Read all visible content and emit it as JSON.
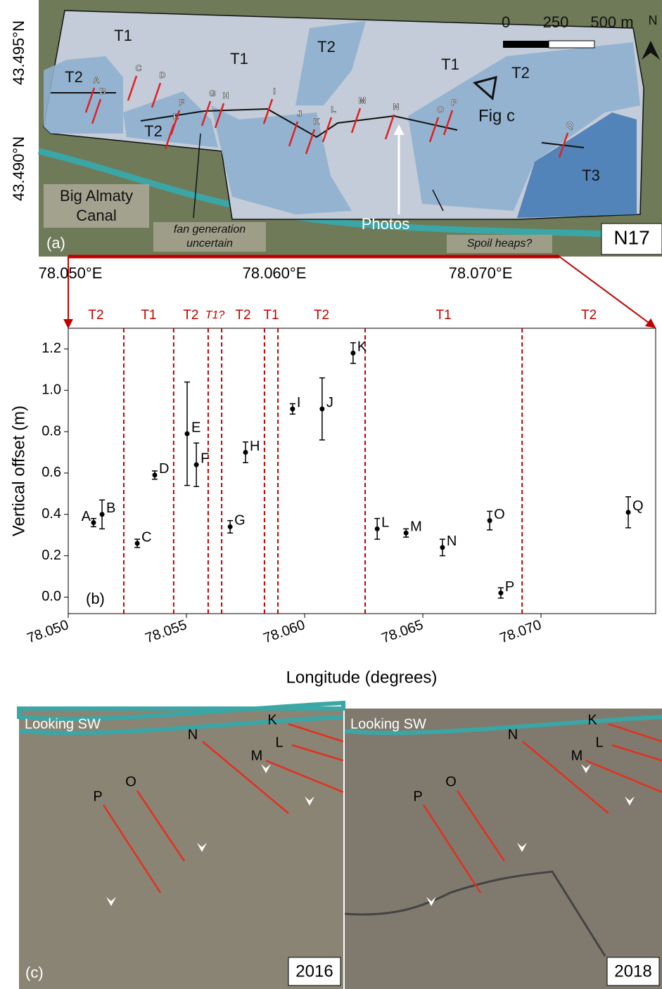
{
  "chart_data": {
    "type": "scatter",
    "xlabel": "Longitude (degrees)",
    "ylabel": "Vertical offset (m)",
    "panel_label": "(b)",
    "x": [
      78.05107,
      78.05143,
      78.05292,
      78.05366,
      78.05503,
      78.05542,
      78.05685,
      78.0575,
      78.05949,
      78.06074,
      78.06205,
      78.06307,
      78.06429,
      78.06583,
      78.06783,
      78.0683,
      78.07369
    ],
    "values": [
      0.36,
      0.4,
      0.26,
      0.59,
      0.79,
      0.64,
      0.34,
      0.7,
      0.91,
      0.91,
      1.18,
      0.33,
      0.31,
      0.24,
      0.37,
      0.02,
      0.41
    ],
    "errors": [
      0.02,
      0.07,
      0.02,
      0.02,
      0.25,
      0.105,
      0.03,
      0.05,
      0.025,
      0.15,
      0.05,
      0.05,
      0.02,
      0.04,
      0.045,
      0.025,
      0.075
    ],
    "point_labels": [
      "A",
      "B",
      "C",
      "D",
      "E",
      "F",
      "G",
      "H",
      "I",
      "J",
      "K",
      "L",
      "M",
      "N",
      "O",
      "P",
      "Q"
    ],
    "color": "#000000",
    "boundaries": [
      78.05235,
      78.05446,
      78.05592,
      78.05649,
      78.0583,
      78.05887,
      78.06256,
      78.0692
    ],
    "segments": [
      "T2",
      "T1",
      "T2",
      "T1?",
      "T2",
      "T1",
      "T2",
      "T1",
      "T2"
    ],
    "boundary_color": "#c00000",
    "xlim": [
      78.05,
      78.07485
    ],
    "ylim": [
      -0.08,
      1.3
    ],
    "xticks": [
      {
        "value": 78.05,
        "label": "78.050"
      },
      78.055,
      {
        "value": 78.06,
        "label": "78.060"
      },
      78.065,
      {
        "value": 78.07,
        "label": "78.070"
      }
    ],
    "yticks": [
      {
        "value": 0,
        "label": "0.0"
      },
      0.2,
      0.4,
      0.6,
      0.8,
      {
        "value": 1,
        "label": "1.0"
      },
      1.2
    ]
  },
  "map": {
    "lat_labels": [
      "43.495°N",
      "43.490°N"
    ],
    "lon_labels": [
      "78.050°E",
      "78.060°E",
      "78.070°E"
    ],
    "terraces": [
      "T1",
      "T1",
      "T2",
      "T1",
      "T2",
      "T2",
      "T2",
      "T3"
    ],
    "fault_labels": [
      "A",
      "B",
      "C",
      "D",
      "E",
      "F",
      "G",
      "H",
      "I",
      "J",
      "K",
      "L",
      "M",
      "N",
      "O",
      "P",
      "Q"
    ],
    "canal": [
      "Big Almaty",
      "Canal"
    ],
    "fan_note": [
      "fan generation",
      "uncertain"
    ],
    "photos_label": "Photos",
    "spoil": "Spoil heaps?",
    "site": "N17",
    "panel_label": "(a)",
    "fig_ref": "Fig c",
    "scale": [
      "0",
      "250",
      "500 m"
    ],
    "north": "N"
  },
  "photos": {
    "panel_label": "(c)",
    "panels": [
      {
        "heading": "Looking SW",
        "year": "2016",
        "fault_labels": [
          "K",
          "L",
          "M",
          "N",
          "O",
          "P"
        ]
      },
      {
        "heading": "Looking SW",
        "year": "2018",
        "fault_labels": [
          "K",
          "L",
          "M",
          "N",
          "O",
          "P"
        ]
      }
    ]
  }
}
